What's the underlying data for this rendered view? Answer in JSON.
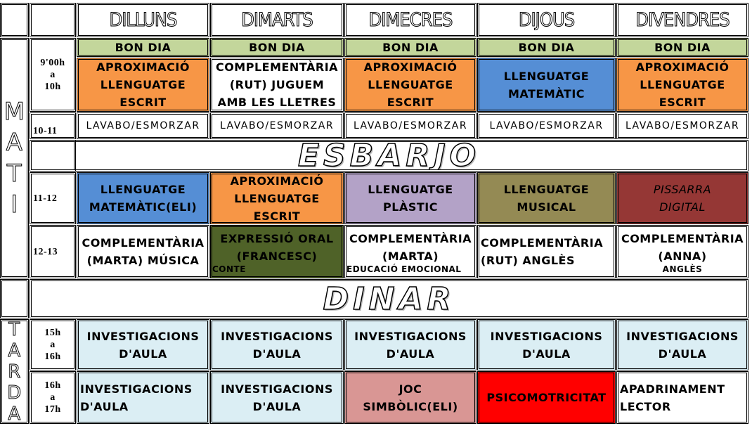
{
  "days": [
    "DILLUNS",
    "DIMARTS",
    "DIMECRES",
    "DIJOUS",
    "DIVENDRES"
  ],
  "sections": {
    "morning": "M\nA\nT\nI",
    "afternoon": "T\nA\nR\nD\nA"
  },
  "times": {
    "t1": "9'00h\na\n10h",
    "t2": "10-11",
    "t3": "11-12",
    "t4": "12-13",
    "t5": "15h\na\n16h",
    "t6": "16h\na\n17h"
  },
  "banners": {
    "break": "ESBARJO",
    "lunch": "DINAR"
  },
  "colors": {
    "orange": "#f79646",
    "blue": "#558ed5",
    "green_light": "#c3d69b",
    "light_blue": "#dbeef4",
    "purple": "#b3a2c7",
    "olive": "#948a54",
    "dark_red": "#953735",
    "dark_green": "#4f6228",
    "pink": "#d99694",
    "red": "#ff0000",
    "white": "#ffffff"
  },
  "rows": {
    "bon_dia": [
      {
        "text": "BON DIA",
        "color": "#c3d69b"
      },
      {
        "text": "BON DIA",
        "color": "#c3d69b"
      },
      {
        "text": "BON DIA",
        "color": "#c3d69b"
      },
      {
        "text": "BON DIA",
        "color": "#c3d69b"
      },
      {
        "text": "BON DIA",
        "color": "#c3d69b"
      }
    ],
    "r9": [
      {
        "text": "APROXIMACIÓ\nLLENGUATGE\nESCRIT",
        "color": "#f79646"
      },
      {
        "text": "COMPLEMENTÀRIA\n(RUT) JUGUEM\nAMB LES LLETRES",
        "color": "#ffffff"
      },
      {
        "text": "APROXIMACIÓ\nLLENGUATGE\nESCRIT",
        "color": "#f79646"
      },
      {
        "text": "LLENGUATGE\nMATEMÀTIC",
        "color": "#558ed5"
      },
      {
        "text": "APROXIMACIÓ\nLLENGUATGE\nESCRIT",
        "color": "#f79646"
      }
    ],
    "r10": [
      {
        "text": "LAVABO/ESMORZAR",
        "color": "#ffffff"
      },
      {
        "text": "LAVABO/ESMORZAR",
        "color": "#ffffff"
      },
      {
        "text": "LAVABO/ESMORZAR",
        "color": "#ffffff"
      },
      {
        "text": "LAVABO/ESMORZAR",
        "color": "#ffffff"
      },
      {
        "text": "LAVABO/ESMORZAR",
        "color": "#ffffff"
      }
    ],
    "r11": [
      {
        "text": "LLENGUATGE\nMATEMÀTIC(ELI)",
        "color": "#558ed5"
      },
      {
        "text": "APROXIMACIÓ\nLLENGUATGE\nESCRIT",
        "color": "#f79646"
      },
      {
        "text": "LLENGUATGE\nPLÀSTIC",
        "color": "#b3a2c7"
      },
      {
        "text": "LLENGUATGE\nMUSICAL",
        "color": "#948a54"
      },
      {
        "text": "PISSARRA\nDIGITAL",
        "color": "#953735",
        "italic": true
      }
    ],
    "r12": [
      {
        "text": "COMPLEMENTÀRIA\n(MARTA) MÚSICA",
        "color": "#ffffff"
      },
      {
        "text": "EXPRESSIÓ ORAL\n(FRANCESC)",
        "sub": "CONTE",
        "color": "#4f6228"
      },
      {
        "text": "COMPLEMENTÀRIA\n(MARTA)",
        "sub": "EDUCACIÓ EMOCIONAL",
        "color": "#ffffff"
      },
      {
        "text": "COMPLEMENTÀRIA\n(RUT) ANGLÈS",
        "color": "#ffffff",
        "align": "left"
      },
      {
        "text": "COMPLEMENTÀRIA\n(ANNA)",
        "sub": "ANGLÈS",
        "subcenter": true,
        "color": "#ffffff"
      }
    ],
    "r15": [
      {
        "text": "INVESTIGACIONS\nD'AULA",
        "color": "#dbeef4"
      },
      {
        "text": "INVESTIGACIONS\nD'AULA",
        "color": "#dbeef4"
      },
      {
        "text": "INVESTIGACIONS\nD'AULA",
        "color": "#dbeef4"
      },
      {
        "text": "INVESTIGACIONS\nD'AULA",
        "color": "#dbeef4"
      },
      {
        "text": "INVESTIGACIONS\nD'AULA",
        "color": "#dbeef4"
      }
    ],
    "r16": [
      {
        "text": "INVESTIGACIONS\nD'AULA",
        "color": "#dbeef4",
        "align": "left"
      },
      {
        "text": "INVESTIGACIONS\nD'AULA",
        "color": "#dbeef4"
      },
      {
        "text": "JOC\nSIMBÒLIC(ELI)",
        "color": "#d99694"
      },
      {
        "text": "PSICOMOTRICITAT",
        "color": "#ff0000"
      },
      {
        "text": "APADRINAMENT\nLECTOR",
        "color": "#ffffff",
        "align": "left"
      }
    ]
  }
}
